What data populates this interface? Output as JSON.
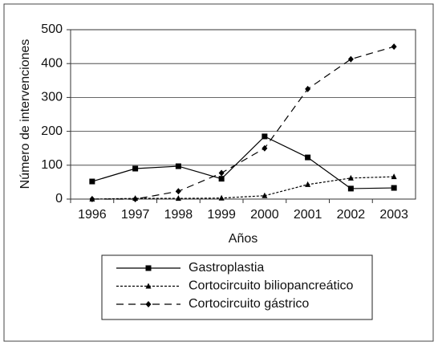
{
  "chart_data": {
    "type": "line",
    "x_label": "Años",
    "y_label": "Número de intervenciones",
    "categories": [
      "1996",
      "1997",
      "1998",
      "1999",
      "2000",
      "2001",
      "2002",
      "2003"
    ],
    "ylim": [
      0,
      500
    ],
    "yticks": [
      0,
      100,
      200,
      300,
      400,
      500
    ],
    "grid": true,
    "legend": "bottom",
    "series": [
      {
        "name": "Gastroplastia",
        "color": "#000000",
        "marker": "square",
        "dash": "solid",
        "values": [
          52,
          90,
          97,
          60,
          185,
          123,
          31,
          33
        ]
      },
      {
        "name": "Cortocircuito biliopancreático",
        "color": "#000000",
        "marker": "triangle",
        "dash": "dotted",
        "values": [
          0,
          2,
          2,
          3,
          10,
          43,
          62,
          66
        ]
      },
      {
        "name": "Cortocircuito gástrico",
        "color": "#000000",
        "marker": "diamond",
        "dash": "dashed",
        "values": [
          0,
          0,
          23,
          77,
          150,
          325,
          413,
          450
        ]
      }
    ]
  }
}
